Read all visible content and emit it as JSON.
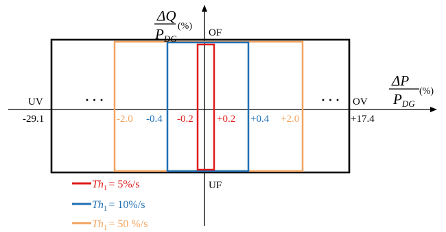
{
  "colors": {
    "black": "#000000",
    "red": "#e01b1b",
    "blue": "#1f6fb4",
    "orange": "#f2a35e"
  },
  "axes": {
    "y_numerator": "ΔQ",
    "y_denominator_main": "P",
    "y_denominator_sub": "DG",
    "y_unit": "(%)",
    "x_numerator": "ΔP",
    "x_denominator_main": "P",
    "x_denominator_sub": "DG",
    "x_unit": "(%)"
  },
  "labels": {
    "top": "OF",
    "bottom": "UF",
    "left": "UV",
    "right": "OV",
    "ellipsis_left": "· · ·",
    "ellipsis_right": "· · ·"
  },
  "ticks": {
    "left_limit": "-29.1",
    "right_limit": "+17.4",
    "orange_left": "-2.0",
    "blue_left": "-0.4",
    "red_left": "-0.2",
    "red_right": "+0.2",
    "blue_right": "+0.4",
    "orange_right": "+2.0"
  },
  "legend": [
    {
      "symbol": "Th",
      "sub": "1",
      "value": "= 5%/s",
      "color": "red"
    },
    {
      "symbol": "Th",
      "sub": "1",
      "value": "= 10%/s",
      "color": "blue"
    },
    {
      "symbol": "Th",
      "sub": "1",
      "value": "= 50 %/s",
      "color": "orange"
    }
  ]
}
